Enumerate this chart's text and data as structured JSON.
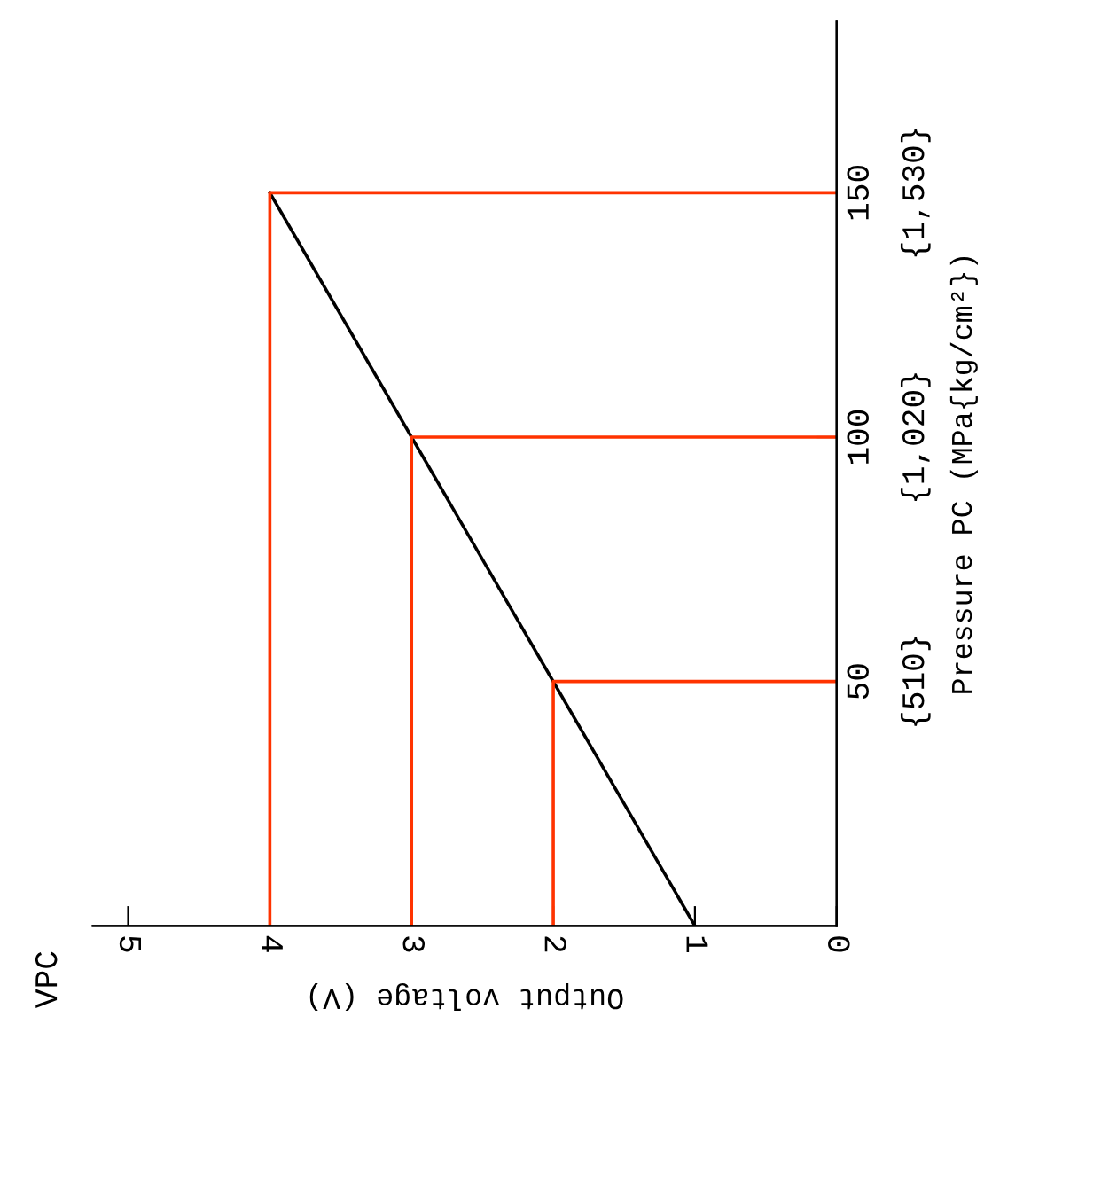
{
  "chart_data": {
    "type": "line",
    "xlabel": "Output voltage (V)",
    "y2label": "Pressure PC (MPa{kg/cm²})",
    "annotations": [
      "VPC"
    ],
    "xlim": [
      5.25,
      0
    ],
    "xticks": [
      0,
      1,
      2,
      3,
      4,
      5
    ],
    "ylim": [
      0,
      185
    ],
    "yticks": [
      50,
      100,
      150
    ],
    "y2lim": [
      0,
      1887
    ],
    "y2ticks": [
      {
        "value": 510,
        "label": "{510}"
      },
      {
        "value": 1020,
        "label": "{1,020}"
      },
      {
        "value": 1530,
        "label": "{1,530}"
      }
    ],
    "marker": "none",
    "grid": false,
    "legend": false,
    "series": [
      {
        "color": "#000000",
        "x": [
          1,
          4
        ],
        "values": [
          0,
          150
        ]
      },
      {
        "color": "#ff3300",
        "x": [
          0,
          2,
          2
        ],
        "values": [
          50,
          50,
          0
        ]
      },
      {
        "color": "#ff3300",
        "x": [
          0,
          3,
          3
        ],
        "values": [
          100,
          100,
          0
        ]
      },
      {
        "color": "#ff3300",
        "x": [
          0,
          4,
          4
        ],
        "values": [
          150,
          150,
          0
        ]
      }
    ]
  }
}
